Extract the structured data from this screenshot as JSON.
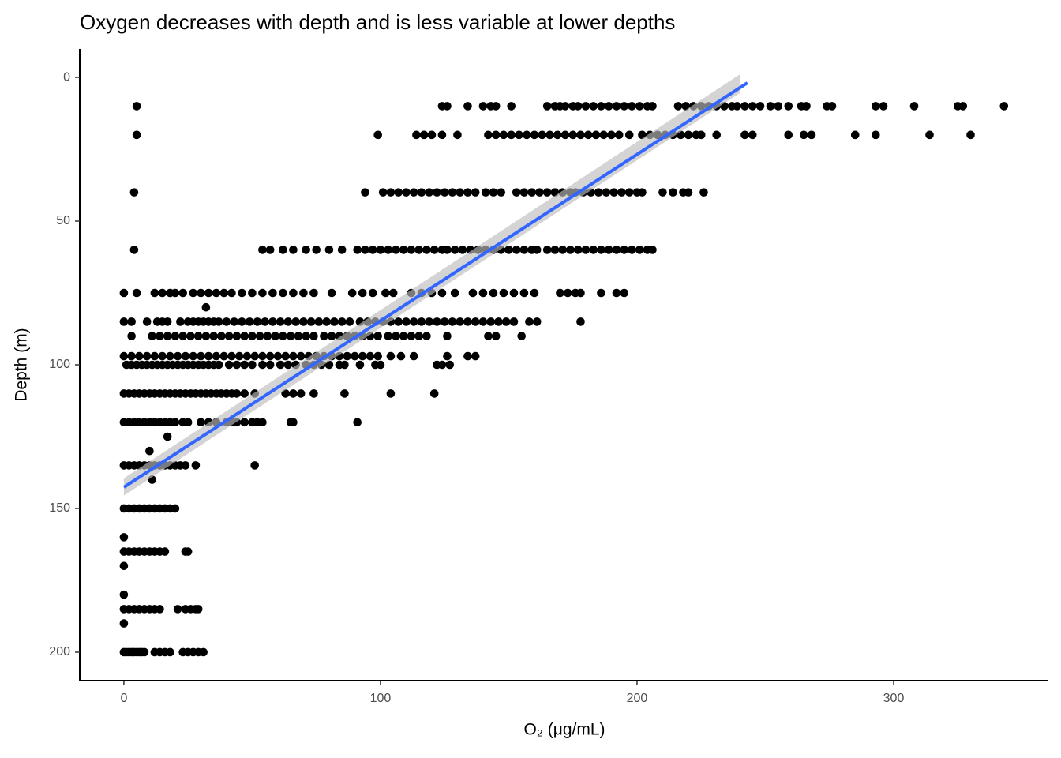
{
  "chart_data": {
    "type": "scatter",
    "title": "Oxygen decreases with depth and is less variable at lower depths",
    "x_label": "O₂ (μg/mL)",
    "y_label": "Depth (m)",
    "color": "#000000",
    "xlim": [
      -17.2,
      360.3
    ],
    "xticks": [
      0,
      100,
      200,
      300
    ],
    "ylim": [
      209.9,
      -9.9
    ],
    "yticks": [
      0,
      50,
      100,
      150,
      200
    ],
    "points": [
      {
        "y": 10,
        "x": [
          5,
          124,
          126,
          134,
          140,
          143,
          145,
          151,
          165,
          168,
          170,
          172,
          175,
          177,
          180,
          183,
          186,
          189,
          192,
          195,
          198,
          201,
          204,
          206,
          216,
          219,
          222,
          225,
          228,
          231,
          234,
          237,
          239,
          242,
          245,
          248,
          252,
          255,
          259,
          264,
          266,
          274,
          276,
          293,
          296,
          308,
          325,
          327,
          343
        ]
      },
      {
        "y": 20,
        "x": [
          5,
          99,
          114,
          117,
          120,
          124,
          130,
          142,
          145,
          148,
          151,
          154,
          157,
          160,
          163,
          166,
          169,
          172,
          175,
          178,
          181,
          184,
          187,
          190,
          193,
          197,
          202,
          205,
          208,
          211,
          214,
          217,
          220,
          223,
          225,
          231,
          242,
          245,
          259,
          265,
          268,
          285,
          293,
          314,
          330
        ]
      },
      {
        "y": 40,
        "x": [
          4,
          94,
          101,
          104,
          107,
          110,
          113,
          116,
          119,
          122,
          125,
          128,
          131,
          134,
          137,
          141,
          144,
          147,
          153,
          156,
          159,
          162,
          165,
          168,
          171,
          174,
          176,
          179,
          182,
          185,
          188,
          191,
          194,
          197,
          200,
          202,
          210,
          214,
          218,
          220,
          226
        ]
      },
      {
        "y": 60,
        "x": [
          4,
          54,
          57,
          62,
          66,
          71,
          75,
          80,
          85,
          91,
          94,
          97,
          100,
          103,
          106,
          109,
          112,
          115,
          118,
          121,
          124,
          126,
          129,
          132,
          135,
          138,
          141,
          144,
          147,
          150,
          153,
          156,
          159,
          161,
          165,
          168,
          171,
          174,
          177,
          180,
          183,
          186,
          189,
          192,
          195,
          198,
          201,
          204,
          206
        ]
      },
      {
        "y": 75,
        "x": [
          0,
          5,
          12,
          15,
          18,
          20,
          23,
          27,
          30,
          33,
          36,
          39,
          42,
          46,
          50,
          54,
          58,
          62,
          66,
          70,
          74,
          81,
          89,
          93,
          97,
          102,
          105,
          112,
          116,
          120,
          124,
          129,
          136,
          140,
          144,
          148,
          152,
          156,
          160,
          170,
          173,
          176,
          178,
          186,
          192,
          195
        ]
      },
      {
        "y": 80,
        "x": [
          32
        ]
      },
      {
        "y": 85,
        "x": [
          0,
          3,
          9,
          13,
          15,
          17,
          22,
          25,
          27,
          29,
          31,
          33,
          35,
          37,
          40,
          43,
          46,
          49,
          52,
          55,
          58,
          61,
          64,
          67,
          70,
          73,
          76,
          79,
          82,
          85,
          88,
          92,
          95,
          98,
          101,
          104,
          107,
          110,
          113,
          116,
          119,
          122,
          125,
          128,
          131,
          134,
          137,
          140,
          143,
          146,
          149,
          152,
          158,
          161,
          178
        ]
      },
      {
        "y": 90,
        "x": [
          3,
          11,
          14,
          17,
          20,
          23,
          26,
          29,
          32,
          35,
          38,
          41,
          44,
          47,
          50,
          53,
          56,
          59,
          62,
          65,
          68,
          71,
          74,
          78,
          81,
          84,
          87,
          90,
          93,
          96,
          99,
          103,
          106,
          109,
          112,
          115,
          118,
          126,
          142,
          145,
          155
        ]
      },
      {
        "y": 97,
        "x": [
          0,
          3,
          6,
          9,
          12,
          15,
          18,
          21,
          24,
          27,
          30,
          33,
          36,
          39,
          42,
          45,
          48,
          51,
          54,
          57,
          60,
          63,
          66,
          69,
          72,
          75,
          78,
          81,
          84,
          87,
          90,
          93,
          96,
          99,
          104,
          108,
          113,
          126,
          134,
          137
        ]
      },
      {
        "y": 100,
        "x": [
          1,
          3,
          5,
          7,
          9,
          11,
          13,
          15,
          17,
          19,
          21,
          23,
          25,
          27,
          29,
          31,
          33,
          35,
          37,
          41,
          44,
          47,
          50,
          54,
          57,
          61,
          64,
          67,
          71,
          74,
          77,
          80,
          84,
          86,
          92,
          98,
          100,
          122,
          124,
          127
        ]
      },
      {
        "y": 110,
        "x": [
          0,
          2,
          4,
          6,
          8,
          10,
          12,
          14,
          16,
          18,
          20,
          22,
          24,
          26,
          28,
          30,
          32,
          34,
          36,
          38,
          40,
          42,
          44,
          47,
          51,
          63,
          66,
          69,
          74,
          86,
          104,
          121
        ]
      },
      {
        "y": 120,
        "x": [
          0,
          2,
          4,
          6,
          8,
          10,
          12,
          14,
          16,
          18,
          20,
          23,
          25,
          30,
          33,
          36,
          40,
          42,
          44,
          47,
          50,
          52,
          54,
          65,
          66,
          91
        ]
      },
      {
        "y": 125,
        "x": [
          17
        ]
      },
      {
        "y": 130,
        "x": [
          10
        ]
      },
      {
        "y": 135,
        "x": [
          0,
          2,
          4,
          6,
          8,
          10,
          12,
          14,
          16,
          18,
          20,
          22,
          24,
          28,
          51
        ]
      },
      {
        "y": 140,
        "x": [
          11
        ]
      },
      {
        "y": 150,
        "x": [
          0,
          2,
          4,
          6,
          8,
          10,
          12,
          14,
          16,
          18,
          20
        ]
      },
      {
        "y": 160,
        "x": [
          0
        ]
      },
      {
        "y": 165,
        "x": [
          0,
          2,
          4,
          6,
          8,
          10,
          12,
          14,
          16,
          24,
          25
        ]
      },
      {
        "y": 170,
        "x": [
          0
        ]
      },
      {
        "y": 180,
        "x": [
          0
        ]
      },
      {
        "y": 185,
        "x": [
          0,
          2,
          4,
          6,
          8,
          10,
          12,
          14,
          21,
          24,
          26,
          28,
          29
        ]
      },
      {
        "y": 190,
        "x": [
          0
        ]
      },
      {
        "y": 200,
        "x": [
          0,
          1,
          2,
          3,
          4,
          5,
          6,
          7,
          8,
          12,
          14,
          16,
          18,
          23,
          25,
          27,
          29,
          31
        ]
      }
    ],
    "trend": {
      "color": "#3366ff",
      "x": [
        0,
        243
      ],
      "y": [
        142.6,
        1.9
      ]
    },
    "band": {
      "color": "#bdbdbd",
      "x": [
        0,
        240
      ],
      "lower": [
        139.5,
        -1
      ],
      "upper": [
        145.5,
        5.5
      ]
    }
  }
}
